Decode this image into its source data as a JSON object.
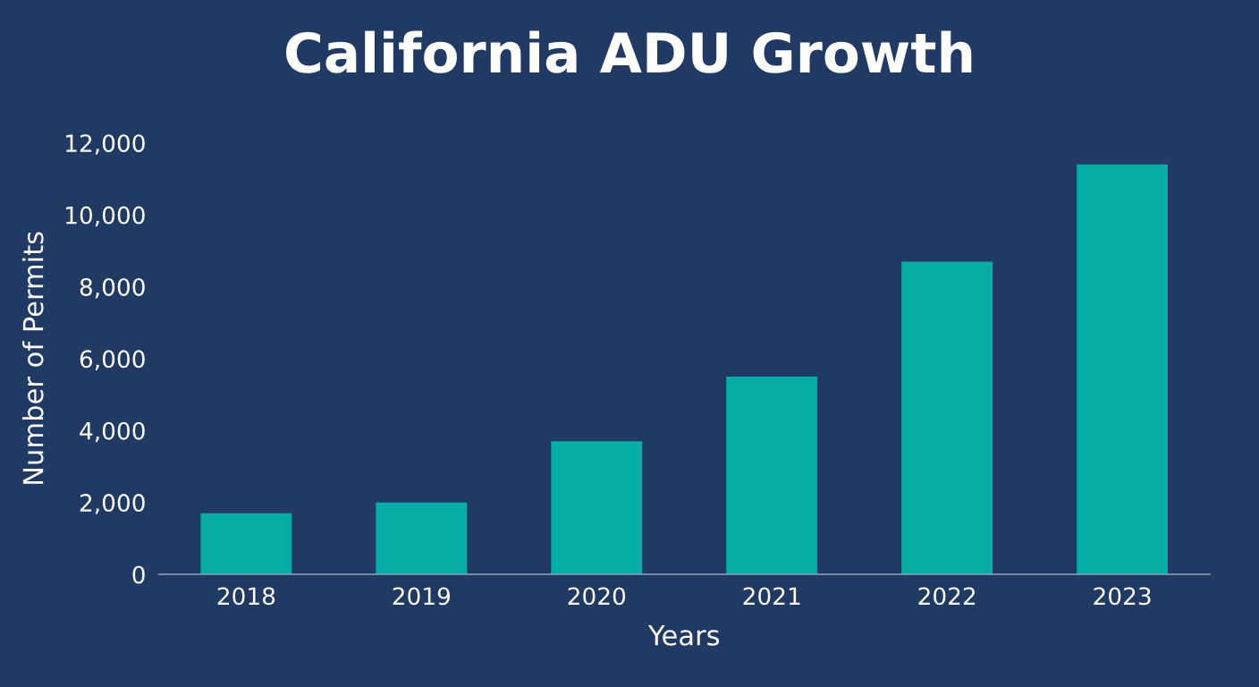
{
  "chart_data": {
    "type": "bar",
    "title": "California ADU Growth",
    "xlabel": "Years",
    "ylabel": "Number of Permits",
    "categories": [
      "2018",
      "2019",
      "2020",
      "2021",
      "2022",
      "2023"
    ],
    "values": [
      1700,
      2000,
      3700,
      5500,
      8700,
      11400
    ],
    "color": "#06ada4",
    "ylim": [
      0,
      12000
    ],
    "yticks": [
      {
        "value": 0,
        "label": "0"
      },
      {
        "value": 2000,
        "label": "2,000"
      },
      {
        "value": 4000,
        "label": "4,000"
      },
      {
        "value": 6000,
        "label": "6,000"
      },
      {
        "value": 8000,
        "label": "8,000"
      },
      {
        "value": 10000,
        "label": "10,000"
      },
      {
        "value": 12000,
        "label": "12,000"
      }
    ],
    "grid": false,
    "legend": false
  }
}
